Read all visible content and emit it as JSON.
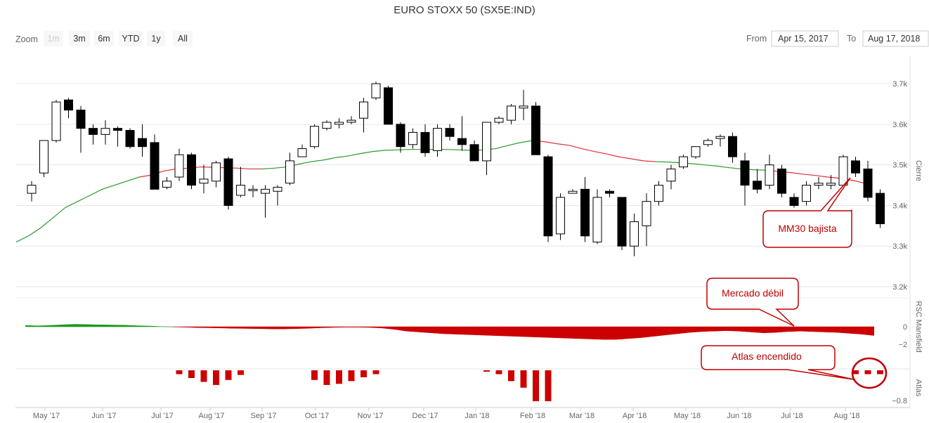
{
  "title": "EURO STOXX 50 (SX5E:IND)",
  "zoom": {
    "label": "Zoom",
    "buttons": [
      "1m",
      "3m",
      "6m",
      "YTD",
      "1y",
      "All"
    ],
    "disabled": "1m"
  },
  "range": {
    "from_label": "From",
    "from_value": "Apr 15, 2017",
    "to_label": "To",
    "to_value": "Aug 17, 2018"
  },
  "colors": {
    "bull_fill": "#ffffff",
    "bear_fill": "#000000",
    "ma_up": "#2b9a2b",
    "ma_down": "#e03030",
    "rsc_pos": "#1a9a1a",
    "rsc_neg": "#cc0000",
    "atlas": "#cc0000",
    "callout": "#c00000",
    "grid": "#e6e6e6"
  },
  "chart_data": {
    "type": "candlestick",
    "title": "EURO STOXX 50 (SX5E:IND)",
    "x_ticks": [
      "May '17",
      "Jun '17",
      "Jul '17",
      "Aug '17",
      "Sep '17",
      "Oct '17",
      "Nov '17",
      "Dec '17",
      "Jan '18",
      "Feb '18",
      "Mar '18",
      "Apr '18",
      "May '18",
      "Jun '18",
      "Jul '18",
      "Aug '18"
    ],
    "x_unit": "weeks (Apr 2017 – Aug 2018)",
    "panels": [
      {
        "name": "Cierre",
        "y_ticks": [
          "3.2k",
          "3.3k",
          "3.4k",
          "3.5k",
          "3.6k",
          "3.7k"
        ],
        "ylim": [
          3200,
          3740
        ],
        "candles": [
          {
            "o": 3430,
            "h": 3460,
            "l": 3410,
            "c": 3450
          },
          {
            "o": 3480,
            "h": 3560,
            "l": 3470,
            "c": 3560
          },
          {
            "o": 3560,
            "h": 3660,
            "l": 3555,
            "c": 3655
          },
          {
            "o": 3660,
            "h": 3665,
            "l": 3615,
            "c": 3635
          },
          {
            "o": 3635,
            "h": 3645,
            "l": 3530,
            "c": 3590
          },
          {
            "o": 3590,
            "h": 3600,
            "l": 3550,
            "c": 3575
          },
          {
            "o": 3575,
            "h": 3610,
            "l": 3550,
            "c": 3590
          },
          {
            "o": 3590,
            "h": 3595,
            "l": 3545,
            "c": 3585
          },
          {
            "o": 3585,
            "h": 3590,
            "l": 3540,
            "c": 3545
          },
          {
            "o": 3565,
            "h": 3600,
            "l": 3520,
            "c": 3545
          },
          {
            "o": 3555,
            "h": 3575,
            "l": 3440,
            "c": 3440
          },
          {
            "o": 3445,
            "h": 3470,
            "l": 3440,
            "c": 3460
          },
          {
            "o": 3470,
            "h": 3540,
            "l": 3460,
            "c": 3525
          },
          {
            "o": 3525,
            "h": 3530,
            "l": 3440,
            "c": 3450
          },
          {
            "o": 3455,
            "h": 3500,
            "l": 3430,
            "c": 3465
          },
          {
            "o": 3460,
            "h": 3510,
            "l": 3445,
            "c": 3505
          },
          {
            "o": 3515,
            "h": 3520,
            "l": 3390,
            "c": 3400
          },
          {
            "o": 3425,
            "h": 3495,
            "l": 3420,
            "c": 3450
          },
          {
            "o": 3440,
            "h": 3450,
            "l": 3420,
            "c": 3440
          },
          {
            "o": 3430,
            "h": 3450,
            "l": 3370,
            "c": 3440
          },
          {
            "o": 3435,
            "h": 3450,
            "l": 3400,
            "c": 3445
          },
          {
            "o": 3455,
            "h": 3530,
            "l": 3450,
            "c": 3510
          },
          {
            "o": 3520,
            "h": 3550,
            "l": 3520,
            "c": 3540
          },
          {
            "o": 3545,
            "h": 3600,
            "l": 3540,
            "c": 3595
          },
          {
            "o": 3590,
            "h": 3610,
            "l": 3585,
            "c": 3605
          },
          {
            "o": 3600,
            "h": 3615,
            "l": 3590,
            "c": 3605
          },
          {
            "o": 3605,
            "h": 3620,
            "l": 3600,
            "c": 3610
          },
          {
            "o": 3615,
            "h": 3665,
            "l": 3580,
            "c": 3655
          },
          {
            "o": 3665,
            "h": 3705,
            "l": 3660,
            "c": 3700
          },
          {
            "o": 3690,
            "h": 3695,
            "l": 3600,
            "c": 3600
          },
          {
            "o": 3600,
            "h": 3605,
            "l": 3530,
            "c": 3545
          },
          {
            "o": 3550,
            "h": 3590,
            "l": 3540,
            "c": 3580
          },
          {
            "o": 3580,
            "h": 3600,
            "l": 3520,
            "c": 3530
          },
          {
            "o": 3535,
            "h": 3600,
            "l": 3520,
            "c": 3590
          },
          {
            "o": 3590,
            "h": 3600,
            "l": 3560,
            "c": 3570
          },
          {
            "o": 3565,
            "h": 3620,
            "l": 3535,
            "c": 3550
          },
          {
            "o": 3550,
            "h": 3560,
            "l": 3510,
            "c": 3510
          },
          {
            "o": 3510,
            "h": 3605,
            "l": 3475,
            "c": 3605
          },
          {
            "o": 3605,
            "h": 3620,
            "l": 3600,
            "c": 3615
          },
          {
            "o": 3610,
            "h": 3650,
            "l": 3600,
            "c": 3645
          },
          {
            "o": 3640,
            "h": 3685,
            "l": 3610,
            "c": 3645
          },
          {
            "o": 3645,
            "h": 3655,
            "l": 3525,
            "c": 3525
          },
          {
            "o": 3520,
            "h": 3525,
            "l": 3310,
            "c": 3325
          },
          {
            "o": 3330,
            "h": 3430,
            "l": 3315,
            "c": 3420
          },
          {
            "o": 3430,
            "h": 3440,
            "l": 3430,
            "c": 3435
          },
          {
            "o": 3440,
            "h": 3470,
            "l": 3310,
            "c": 3325
          },
          {
            "o": 3310,
            "h": 3440,
            "l": 3305,
            "c": 3420
          },
          {
            "o": 3435,
            "h": 3440,
            "l": 3420,
            "c": 3430
          },
          {
            "o": 3420,
            "h": 3420,
            "l": 3290,
            "c": 3300
          },
          {
            "o": 3300,
            "h": 3380,
            "l": 3275,
            "c": 3360
          },
          {
            "o": 3350,
            "h": 3430,
            "l": 3300,
            "c": 3410
          },
          {
            "o": 3410,
            "h": 3460,
            "l": 3400,
            "c": 3450
          },
          {
            "o": 3460,
            "h": 3500,
            "l": 3440,
            "c": 3490
          },
          {
            "o": 3495,
            "h": 3525,
            "l": 3490,
            "c": 3520
          },
          {
            "o": 3520,
            "h": 3545,
            "l": 3515,
            "c": 3545
          },
          {
            "o": 3550,
            "h": 3565,
            "l": 3545,
            "c": 3560
          },
          {
            "o": 3565,
            "h": 3575,
            "l": 3545,
            "c": 3570
          },
          {
            "o": 3570,
            "h": 3580,
            "l": 3505,
            "c": 3520
          },
          {
            "o": 3510,
            "h": 3530,
            "l": 3400,
            "c": 3450
          },
          {
            "o": 3460,
            "h": 3490,
            "l": 3430,
            "c": 3440
          },
          {
            "o": 3450,
            "h": 3525,
            "l": 3440,
            "c": 3500
          },
          {
            "o": 3490,
            "h": 3500,
            "l": 3420,
            "c": 3430
          },
          {
            "o": 3420,
            "h": 3430,
            "l": 3395,
            "c": 3400
          },
          {
            "o": 3410,
            "h": 3460,
            "l": 3400,
            "c": 3450
          },
          {
            "o": 3450,
            "h": 3470,
            "l": 3440,
            "c": 3455
          },
          {
            "o": 3450,
            "h": 3475,
            "l": 3440,
            "c": 3455
          },
          {
            "o": 3450,
            "h": 3525,
            "l": 3440,
            "c": 3520
          },
          {
            "o": 3510,
            "h": 3520,
            "l": 3470,
            "c": 3480
          },
          {
            "o": 3490,
            "h": 3510,
            "l": 3410,
            "c": 3420
          },
          {
            "o": 3430,
            "h": 3440,
            "l": 3345,
            "c": 3355
          }
        ],
        "moving_average": {
          "name": "MM30",
          "values": [
            3310,
            3325,
            3345,
            3370,
            3395,
            3410,
            3425,
            3440,
            3450,
            3460,
            3470,
            3475,
            3485,
            3490,
            3492,
            3495,
            3494,
            3493,
            3492,
            3490,
            3490,
            3492,
            3495,
            3502,
            3508,
            3512,
            3518,
            3522,
            3528,
            3533,
            3536,
            3537,
            3538,
            3538,
            3538,
            3538,
            3537,
            3536,
            3537,
            3540,
            3548,
            3555,
            3560,
            3557,
            3552,
            3548,
            3540,
            3533,
            3527,
            3520,
            3515,
            3510,
            3508,
            3507,
            3505,
            3503,
            3500,
            3497,
            3493,
            3490,
            3488,
            3487,
            3484,
            3481,
            3477,
            3474,
            3470,
            3467,
            3462,
            3455
          ],
          "trend_color_breaks": [
            {
              "from": 0,
              "to": 10,
              "color": "ma_up"
            },
            {
              "from": 10,
              "to": 20,
              "color": "ma_down"
            },
            {
              "from": 20,
              "to": 42,
              "color": "ma_up"
            },
            {
              "from": 42,
              "to": 52,
              "color": "ma_down"
            },
            {
              "from": 52,
              "to": 61,
              "color": "ma_up"
            },
            {
              "from": 61,
              "to": 69,
              "color": "ma_down"
            }
          ]
        }
      },
      {
        "name": "RSC Mansfield",
        "y_ticks": [
          "0",
          "−2"
        ],
        "ylim": [
          -2.6,
          0.9
        ],
        "values": [
          0.15,
          0.1,
          0.15,
          0.22,
          0.28,
          0.25,
          0.22,
          0.2,
          0.18,
          0.12,
          0.08,
          0.02,
          -0.02,
          -0.05,
          -0.1,
          -0.12,
          -0.15,
          -0.18,
          -0.2,
          -0.22,
          -0.25,
          -0.25,
          -0.22,
          -0.18,
          -0.12,
          -0.08,
          -0.05,
          -0.05,
          -0.08,
          -0.15,
          -0.3,
          -0.5,
          -0.6,
          -0.7,
          -0.8,
          -0.85,
          -0.9,
          -0.95,
          -1.0,
          -1.05,
          -1.1,
          -1.15,
          -1.2,
          -1.25,
          -1.3,
          -1.35,
          -1.4,
          -1.45,
          -1.45,
          -1.35,
          -1.25,
          -1.1,
          -0.95,
          -0.8,
          -0.65,
          -0.55,
          -0.5,
          -0.45,
          -0.5,
          -0.6,
          -0.7,
          -0.65,
          -0.55,
          -0.5,
          -0.55,
          -0.6,
          -0.65,
          -0.75,
          -0.85,
          -1.0
        ]
      },
      {
        "name": "Atlas",
        "y_ticks": [
          "−0.8"
        ],
        "ylim": [
          -0.85,
          0.1
        ],
        "values": [
          0,
          0,
          0,
          0,
          0,
          0,
          0,
          0,
          0,
          0,
          0,
          0,
          -0.1,
          -0.2,
          -0.3,
          -0.38,
          -0.25,
          -0.12,
          0,
          0,
          0,
          0,
          0,
          -0.25,
          -0.38,
          -0.35,
          -0.28,
          -0.18,
          -0.1,
          0,
          0,
          0,
          0,
          0,
          0,
          0,
          0,
          -0.02,
          -0.1,
          -0.28,
          -0.45,
          -0.8,
          -0.8,
          0,
          0,
          0,
          0,
          0,
          0,
          0,
          0,
          0,
          0,
          0,
          0,
          0,
          0,
          0,
          0,
          0,
          0,
          0,
          0,
          0,
          0,
          0,
          0,
          -0.1,
          -0.1,
          -0.1
        ]
      }
    ],
    "annotations": [
      "MM30 bajista",
      "Mercado débil",
      "Atlas encendido"
    ]
  }
}
